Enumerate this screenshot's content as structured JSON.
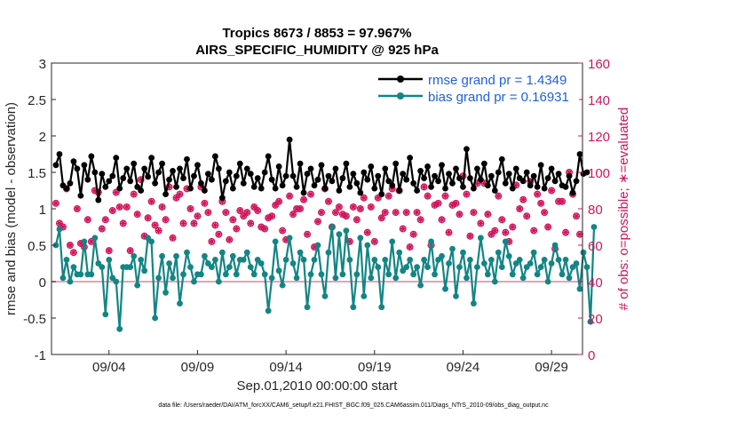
{
  "chart_data": {
    "type": "line",
    "title_line1": "Tropics 8673 / 8853 = 97.967%",
    "title_line2": "AIRS_SPECIFIC_HUMIDITY @ 925 hPa",
    "xlabel": "Sep.01,2010 00:00:00 start",
    "ylabel_left": "rmse and bias (model - observation)",
    "ylabel_right": "# of obs: o=possible; ∗=evaluated",
    "footer": "data file: /Users/raeder/DAI/ATM_forcXX/CAM6_setup/f.e21.FHIST_BGC.f09_025.CAM6assim.011/Diags_NTrS_2010-09/obs_diag_output.nc",
    "xlim": [
      0.75,
      30.75
    ],
    "ylim_left": [
      -1,
      3
    ],
    "ylim_right": [
      0,
      160
    ],
    "left_ticks": [
      "-1",
      "-0.5",
      "0",
      "0.5",
      "1",
      "1.5",
      "2",
      "2.5",
      "3"
    ],
    "left_tick_values": [
      -1,
      -0.5,
      0,
      0.5,
      1,
      1.5,
      2,
      2.5,
      3
    ],
    "right_ticks": [
      "0",
      "20",
      "40",
      "60",
      "80",
      "100",
      "120",
      "140",
      "160"
    ],
    "right_tick_values": [
      0,
      20,
      40,
      60,
      80,
      100,
      120,
      140,
      160
    ],
    "x_ticks": [
      "09/04",
      "09/09",
      "09/14",
      "09/19",
      "09/24",
      "09/29"
    ],
    "x_tick_values": [
      4,
      9,
      14,
      19,
      24,
      29
    ],
    "colors": {
      "rmse": "#000000",
      "bias": "#138585",
      "counts": "#d1145a",
      "zero_line": "#e8a3b5",
      "axis": "#262626"
    },
    "series": [
      {
        "name": "rmse grand pr = 1.4349",
        "legend": "rmse grand pr = 1.4349",
        "values": [
          1.6,
          1.75,
          1.32,
          1.28,
          1.35,
          1.65,
          1.55,
          1.18,
          1.6,
          1.4,
          1.72,
          1.5,
          1.12,
          1.48,
          1.3,
          1.38,
          1.45,
          1.7,
          1.28,
          1.42,
          1.55,
          1.38,
          1.62,
          1.3,
          1.25,
          1.55,
          1.44,
          1.7,
          1.35,
          1.5,
          1.62,
          1.2,
          1.4,
          1.52,
          1.3,
          1.55,
          1.42,
          1.68,
          1.28,
          1.45,
          1.6,
          1.35,
          1.25,
          1.48,
          1.4,
          1.72,
          1.55,
          1.15,
          1.38,
          1.5,
          1.28,
          1.45,
          1.62,
          1.35,
          1.55,
          1.48,
          1.3,
          1.42,
          1.28,
          1.5,
          1.72,
          1.4,
          1.28,
          1.58,
          1.32,
          1.45,
          1.95,
          1.45,
          1.3,
          1.62,
          1.22,
          1.48,
          1.55,
          1.32,
          1.4,
          1.6,
          1.28,
          1.45,
          1.38,
          1.55,
          1.25,
          1.42,
          1.62,
          1.3,
          1.48,
          1.35,
          1.22,
          1.5,
          1.4,
          1.58,
          1.28,
          1.45,
          1.2,
          1.55,
          1.38,
          1.32,
          1.62,
          1.25,
          1.48,
          1.4,
          1.7,
          1.35,
          1.25,
          1.52,
          1.42,
          1.58,
          1.3,
          1.45,
          1.38,
          1.6,
          1.28,
          1.48,
          1.35,
          1.55,
          1.42,
          1.3,
          1.82,
          1.42,
          1.28,
          1.55,
          1.4,
          1.62,
          1.32,
          1.45,
          1.25,
          1.5,
          1.68,
          1.35,
          1.48,
          1.28,
          1.55,
          1.42,
          1.38,
          1.5,
          1.32,
          1.45,
          1.3,
          1.6,
          1.28,
          1.42,
          1.55,
          1.38,
          1.48,
          1.32,
          1.3,
          1.45,
          1.22,
          1.38,
          1.75,
          1.48,
          1.5
        ]
      },
      {
        "name": "bias grand pr = 0.16931",
        "legend": "bias grand pr = 0.16931",
        "values": [
          0.5,
          0.72,
          0.05,
          0.3,
          0.0,
          0.2,
          0.1,
          0.1,
          0.55,
          0.1,
          0.1,
          0.6,
          0.25,
          0.2,
          -0.45,
          0.3,
          0.05,
          0.0,
          -0.65,
          0.2,
          0.2,
          0.2,
          0.35,
          -0.05,
          0.3,
          0.15,
          0.6,
          0.55,
          -0.5,
          0.05,
          0.35,
          -0.15,
          0.25,
          0.05,
          0.35,
          -0.3,
          0.1,
          0.4,
          0.2,
          0.0,
          0.1,
          0.1,
          0.35,
          0.25,
          0.2,
          0.3,
          0.0,
          0.4,
          0.1,
          0.2,
          0.35,
          0.1,
          0.3,
          0.3,
          0.4,
          0.2,
          0.1,
          0.3,
          0.25,
          0.1,
          -0.4,
          0.05,
          0.55,
          0.15,
          -0.05,
          0.3,
          0.6,
          0.25,
          0.05,
          0.4,
          0.3,
          -0.35,
          0.1,
          0.3,
          0.5,
          0.1,
          -0.2,
          0.4,
          0.75,
          0.05,
          0.65,
          0.1,
          0.7,
          0.3,
          -0.35,
          0.1,
          0.6,
          -0.2,
          0.5,
          0.05,
          0.3,
          0.2,
          -0.35,
          0.3,
          0.1,
          0.55,
          0.05,
          0.4,
          0.15,
          0.2,
          0.3,
          0.1,
          0.2,
          -0.05,
          0.3,
          0.2,
          0.55,
          0.1,
          0.3,
          0.35,
          -0.1,
          0.25,
          0.45,
          -0.2,
          0.2,
          0.4,
          0.05,
          0.3,
          -0.3,
          0.2,
          0.6,
          0.25,
          0.1,
          0.3,
          0.0,
          0.4,
          0.2,
          0.55,
          0.35,
          0.1,
          0.25,
          0.3,
          0.05,
          0.2,
          0.25,
          0.4,
          0.1,
          0.2,
          0.3,
          0.0,
          0.25,
          0.5,
          0.3,
          0.1,
          0.3,
          0.05,
          0.2,
          0.25,
          -0.1,
          0.4,
          0.2,
          -0.55,
          0.75
        ]
      },
      {
        "name": "# of obs possible",
        "values": [
          83,
          72,
          70,
          91,
          60,
          56,
          80,
          61,
          59,
          74,
          62,
          90,
          89,
          69,
          74,
          57,
          79,
          89,
          81,
          72,
          81,
          57,
          88,
          77,
          96,
          65,
          75,
          84,
          71,
          68,
          81,
          74,
          92,
          64,
          86,
          88,
          72,
          91,
          80,
          72,
          76,
          92,
          83,
          78,
          62,
          71,
          66,
          84,
          78,
          63,
          74,
          69,
          79,
          76,
          78,
          72,
          81,
          79,
          70,
          69,
          75,
          76,
          82,
          84,
          68,
          63,
          87,
          77,
          80,
          80,
          85,
          66,
          88,
          59,
          73,
          78,
          91,
          84,
          70,
          78,
          81,
          77,
          76,
          62,
          81,
          74,
          80,
          86,
          67,
          81,
          62,
          86,
          75,
          78,
          87,
          91,
          78,
          90,
          69,
          78,
          59,
          66,
          78,
          74,
          92,
          87,
          60,
          82,
          83,
          74,
          87,
          67,
          82,
          83,
          77,
          98,
          88,
          65,
          78,
          94,
          72,
          94,
          77,
          66,
          68,
          87,
          74,
          67,
          62,
          70,
          93,
          80,
          85,
          76,
          95,
          68,
          88,
          83,
          78,
          70,
          90,
          58,
          84,
          84,
          67,
          100,
          88,
          76,
          66,
          62
        ]
      },
      {
        "name": "# of obs evaluated",
        "values": [
          83,
          72,
          70,
          91,
          60,
          56,
          80,
          61,
          59,
          74,
          62,
          90,
          89,
          69,
          74,
          57,
          79,
          89,
          81,
          72,
          81,
          57,
          88,
          77,
          96,
          65,
          75,
          84,
          71,
          68,
          81,
          74,
          92,
          64,
          86,
          88,
          72,
          91,
          80,
          72,
          76,
          92,
          83,
          78,
          62,
          71,
          66,
          84,
          78,
          63,
          74,
          69,
          79,
          76,
          78,
          72,
          81,
          79,
          70,
          69,
          75,
          76,
          82,
          84,
          68,
          63,
          87,
          77,
          80,
          80,
          85,
          66,
          88,
          59,
          73,
          78,
          91,
          84,
          70,
          78,
          81,
          77,
          76,
          62,
          81,
          74,
          80,
          86,
          67,
          81,
          62,
          86,
          75,
          78,
          87,
          91,
          78,
          90,
          69,
          78,
          59,
          66,
          78,
          74,
          92,
          87,
          60,
          82,
          83,
          74,
          87,
          67,
          82,
          83,
          77,
          98,
          88,
          65,
          78,
          94,
          72,
          94,
          77,
          66,
          68,
          87,
          74,
          67,
          62,
          70,
          93,
          80,
          85,
          76,
          95,
          68,
          88,
          83,
          78,
          70,
          90,
          58,
          84,
          84,
          67,
          100,
          88,
          76,
          66,
          62
        ]
      }
    ]
  }
}
